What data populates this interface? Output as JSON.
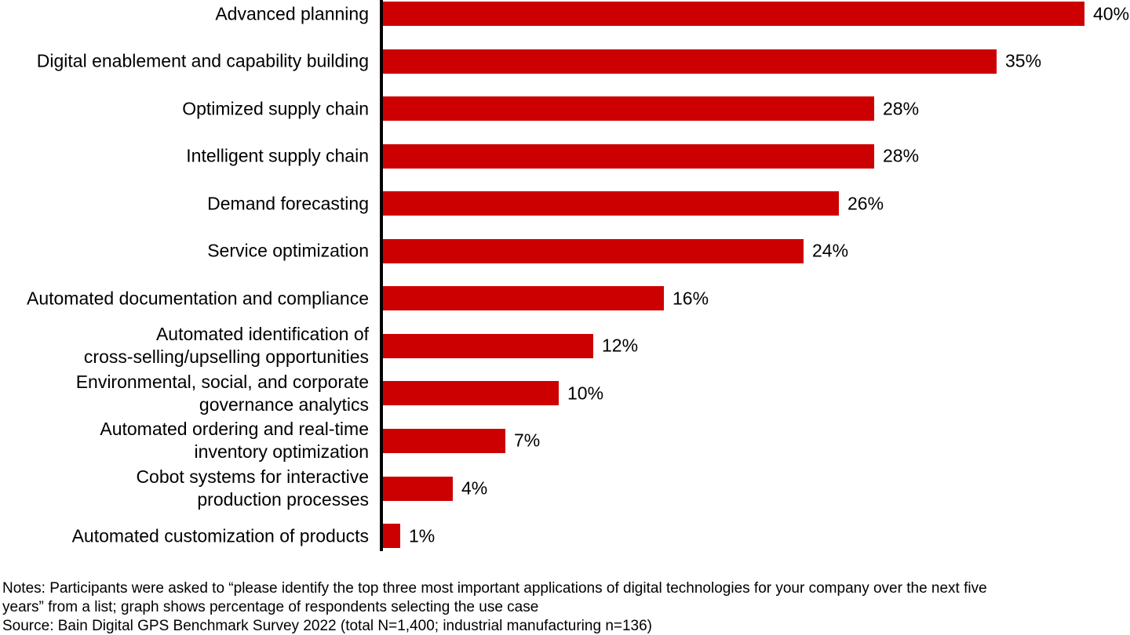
{
  "chart_data": {
    "type": "bar",
    "orientation": "horizontal",
    "categories": [
      "Advanced planning",
      "Digital enablement and capability building",
      "Optimized supply chain",
      "Intelligent supply chain",
      "Demand forecasting",
      "Service optimization",
      "Automated documentation and compliance",
      "Automated identification of\ncross-selling/upselling opportunities",
      "Environmental, social, and corporate\ngovernance analytics",
      "Automated ordering and real-time\ninventory optimization",
      "Cobot systems for interactive\nproduction processes",
      "Automated customization of products"
    ],
    "values": [
      40,
      35,
      28,
      28,
      26,
      24,
      16,
      12,
      10,
      7,
      4,
      1
    ],
    "unit": "%",
    "xlim": [
      0,
      40
    ],
    "grid": false,
    "value_label_position": "outside-right",
    "bar_color": "#CC0000",
    "axis_color": "#000000",
    "text_color": "#000000"
  },
  "notes": {
    "lines": [
      "Notes: Participants were asked to “please identify the top three most important applications of digital technologies for your company over the next five",
      "years” from a list; graph shows percentage of respondents selecting the use case"
    ],
    "source": "Source: Bain Digital GPS Benchmark Survey 2022 (total N=1,400; industrial manufacturing n=136)"
  }
}
